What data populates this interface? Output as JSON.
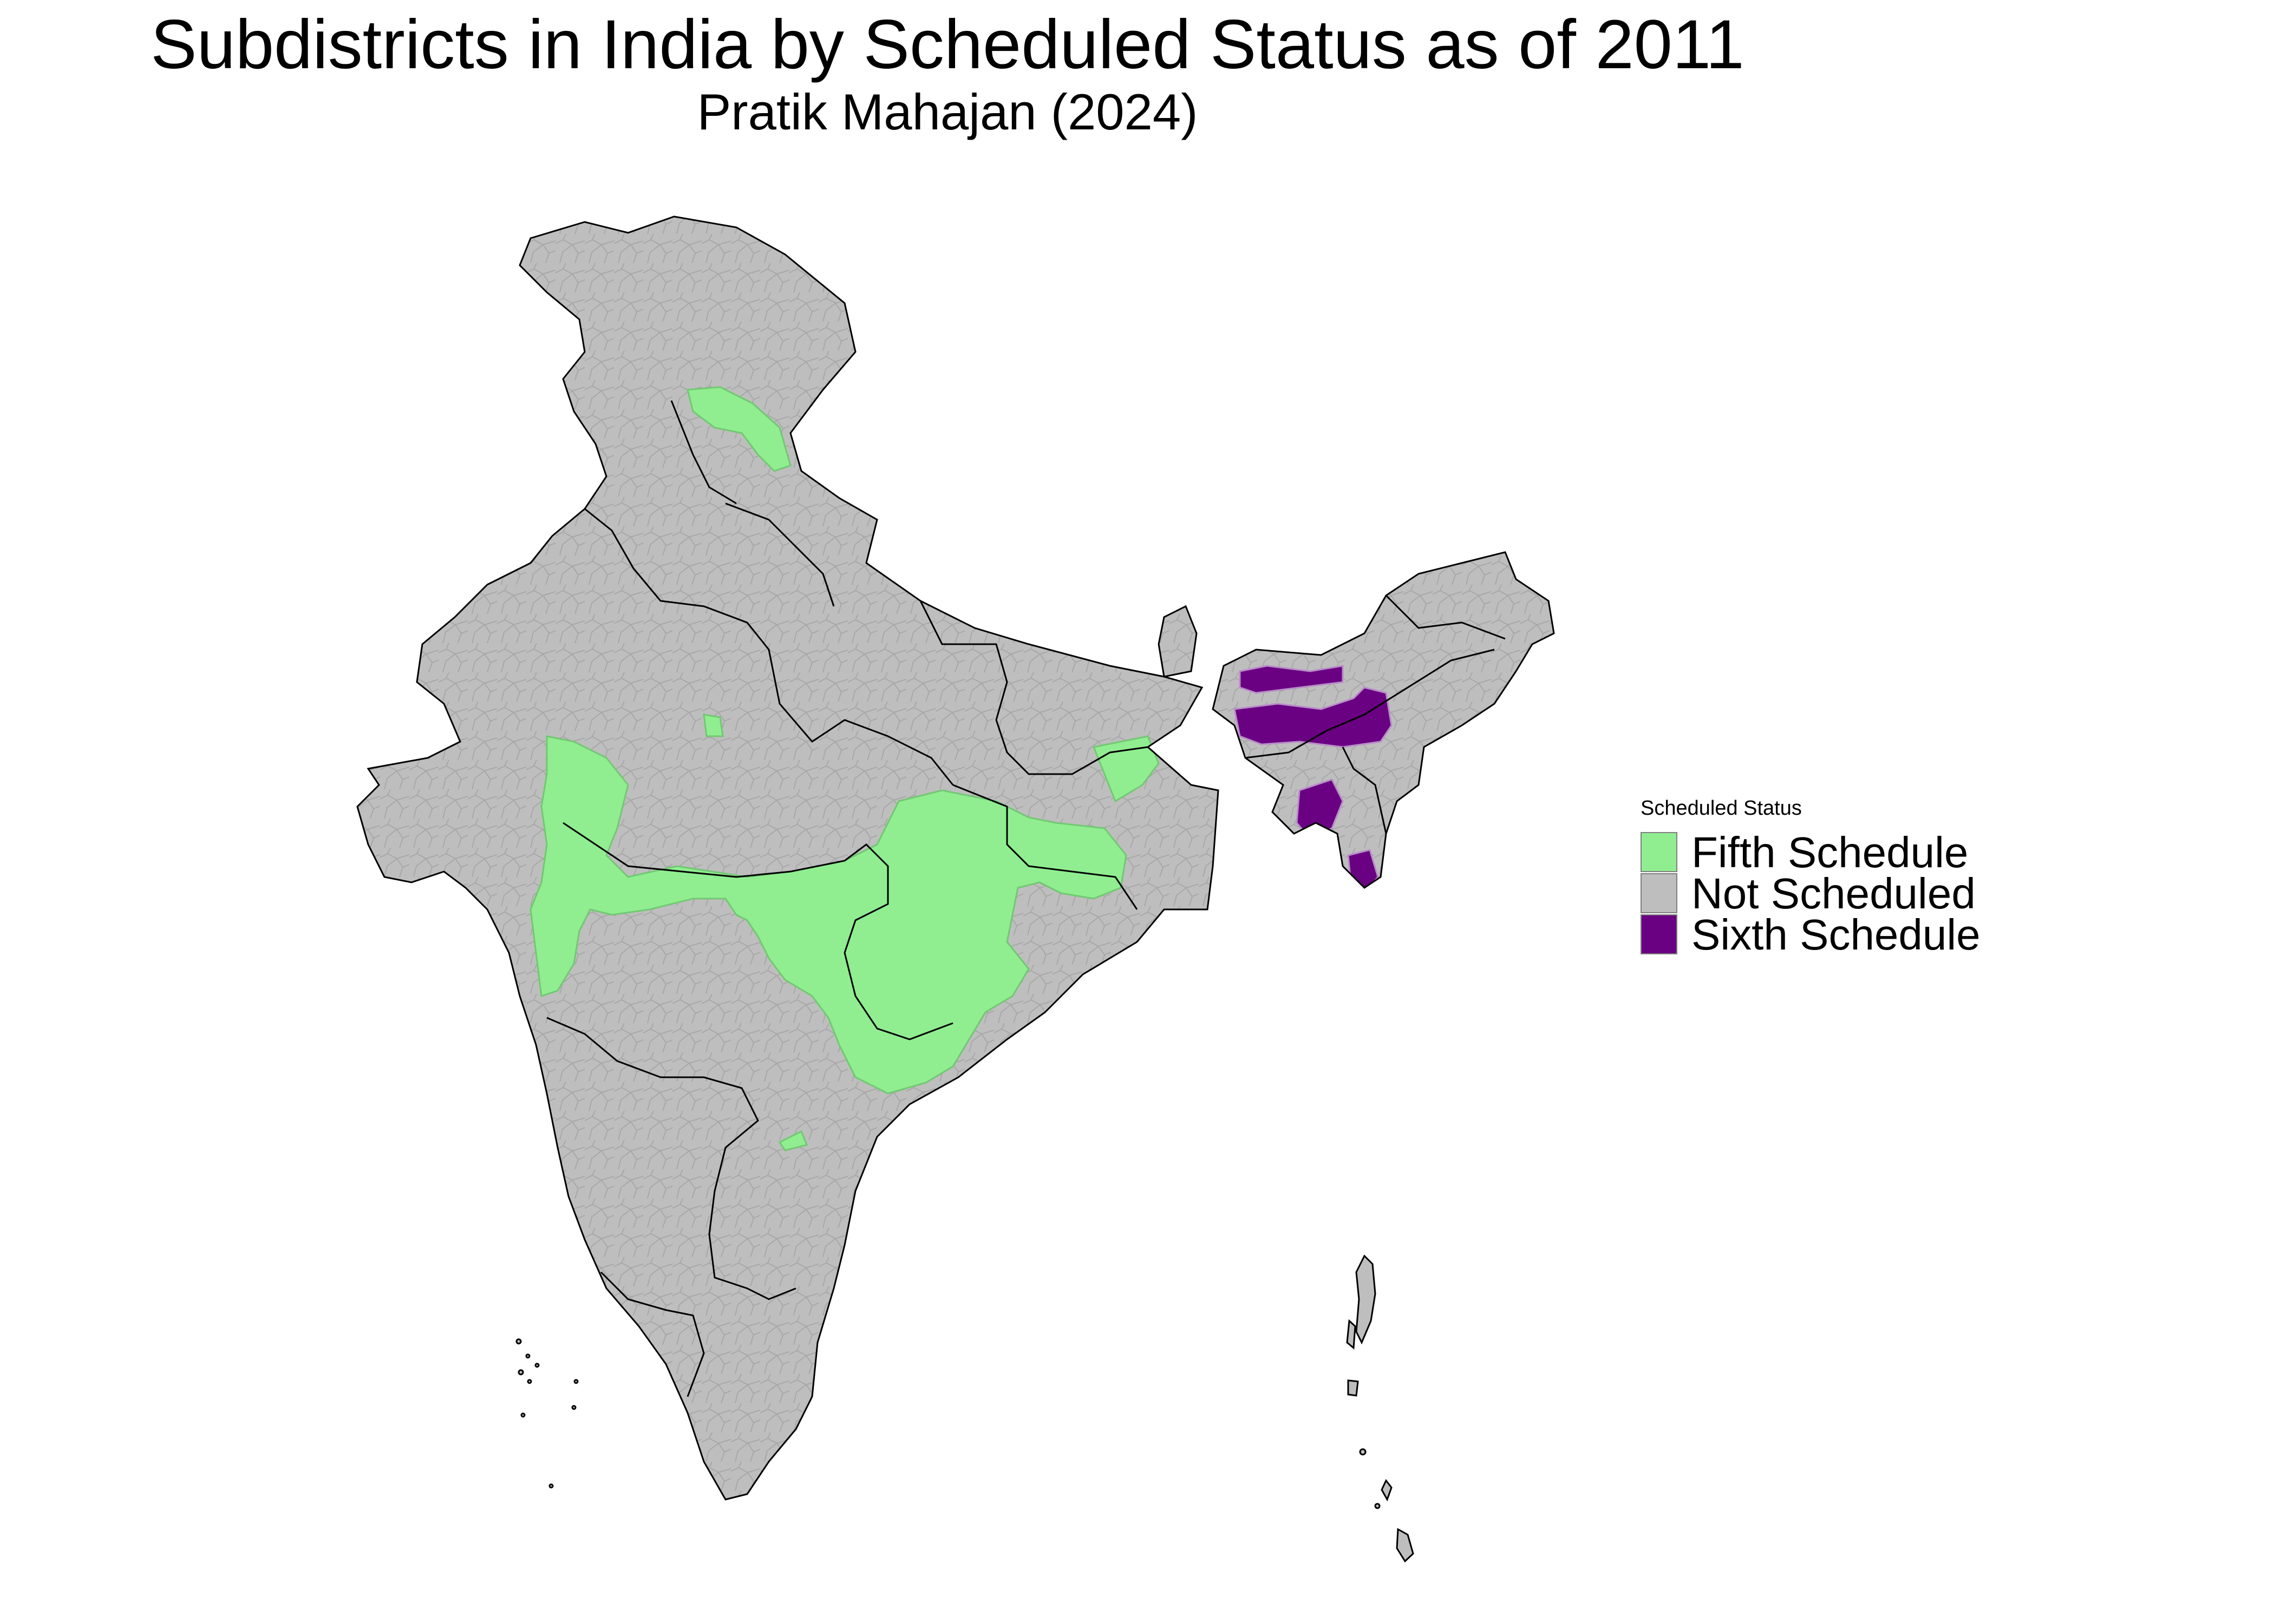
{
  "title": "Subdistricts in India by Scheduled Status as of 2011",
  "subtitle": "Pratik Mahajan (2024)",
  "legend": {
    "title": "Scheduled Status",
    "items": [
      {
        "label": "Fifth Schedule",
        "color": "#90EE90"
      },
      {
        "label": "Not Scheduled",
        "color": "#BEBEBE"
      },
      {
        "label": "Sixth Schedule",
        "color": "#6A0082"
      }
    ]
  },
  "colors": {
    "fifth_schedule": "#90EE90",
    "not_scheduled": "#BEBEBE",
    "sixth_schedule": "#6A0082",
    "state_border": "#000000",
    "subdistrict_border": "#A8A8A8"
  }
}
